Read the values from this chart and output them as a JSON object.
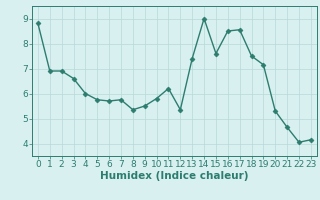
{
  "xlabel": "Humidex (Indice chaleur)",
  "x_values": [
    0,
    1,
    2,
    3,
    4,
    5,
    6,
    7,
    8,
    9,
    10,
    11,
    12,
    13,
    14,
    15,
    16,
    17,
    18,
    19,
    20,
    21,
    22,
    23
  ],
  "y_values": [
    8.8,
    6.9,
    6.9,
    6.6,
    6.0,
    5.75,
    5.7,
    5.75,
    5.35,
    5.5,
    5.8,
    6.2,
    5.35,
    7.4,
    9.0,
    7.6,
    8.5,
    8.55,
    7.5,
    7.15,
    5.3,
    4.65,
    4.05,
    4.15
  ],
  "line_color": "#2d7d6f",
  "marker": "D",
  "marker_size": 2.5,
  "bg_color": "#d8f0f0",
  "grid_color": "#b8d8d8",
  "xlim": [
    -0.5,
    23.5
  ],
  "ylim": [
    3.5,
    9.5
  ],
  "yticks": [
    4,
    5,
    6,
    7,
    8,
    9
  ],
  "xticks": [
    0,
    1,
    2,
    3,
    4,
    5,
    6,
    7,
    8,
    9,
    10,
    11,
    12,
    13,
    14,
    15,
    16,
    17,
    18,
    19,
    20,
    21,
    22,
    23
  ],
  "tick_color": "#2d7d6f",
  "label_color": "#2d7d6f",
  "font_size": 6.5,
  "xlabel_font_size": 7.5,
  "linewidth": 1.0
}
